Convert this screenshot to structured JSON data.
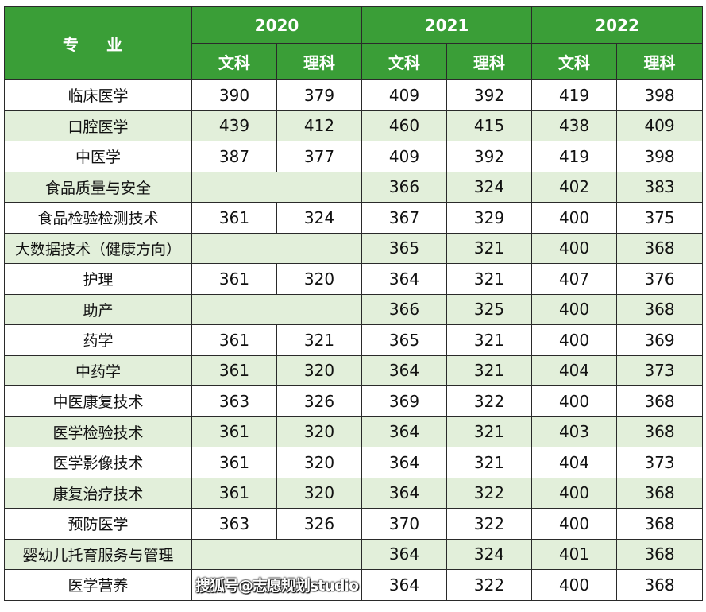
{
  "header": {
    "major_label": "专 业",
    "years": [
      "2020",
      "2021",
      "2022"
    ],
    "sub_columns": [
      "文科",
      "理科"
    ]
  },
  "colors": {
    "header_bg": "#3a9e37",
    "alt_row_bg": "#e2efda"
  },
  "rows": [
    {
      "name": "临床医学",
      "y2020": [
        "390",
        "379"
      ],
      "y2021": [
        "409",
        "392"
      ],
      "y2022": [
        "419",
        "398"
      ]
    },
    {
      "name": "口腔医学",
      "y2020": [
        "439",
        "412"
      ],
      "y2021": [
        "460",
        "415"
      ],
      "y2022": [
        "438",
        "409"
      ]
    },
    {
      "name": "中医学",
      "y2020": [
        "387",
        "377"
      ],
      "y2021": [
        "409",
        "392"
      ],
      "y2022": [
        "419",
        "398"
      ]
    },
    {
      "name": "食品质量与安全",
      "y2020": null,
      "y2021": [
        "366",
        "324"
      ],
      "y2022": [
        "402",
        "383"
      ]
    },
    {
      "name": "食品检验检测技术",
      "y2020": [
        "361",
        "324"
      ],
      "y2021": [
        "367",
        "329"
      ],
      "y2022": [
        "400",
        "375"
      ]
    },
    {
      "name": "大数据技术（健康方向）",
      "y2020": null,
      "y2021": [
        "365",
        "321"
      ],
      "y2022": [
        "400",
        "368"
      ]
    },
    {
      "name": "护理",
      "y2020": [
        "361",
        "320"
      ],
      "y2021": [
        "364",
        "321"
      ],
      "y2022": [
        "407",
        "376"
      ]
    },
    {
      "name": "助产",
      "y2020": null,
      "y2021": [
        "366",
        "325"
      ],
      "y2022": [
        "400",
        "368"
      ]
    },
    {
      "name": "药学",
      "y2020": [
        "361",
        "321"
      ],
      "y2021": [
        "365",
        "321"
      ],
      "y2022": [
        "400",
        "369"
      ]
    },
    {
      "name": "中药学",
      "y2020": [
        "361",
        "320"
      ],
      "y2021": [
        "364",
        "321"
      ],
      "y2022": [
        "404",
        "373"
      ]
    },
    {
      "name": "中医康复技术",
      "y2020": [
        "363",
        "326"
      ],
      "y2021": [
        "369",
        "322"
      ],
      "y2022": [
        "400",
        "368"
      ]
    },
    {
      "name": "医学检验技术",
      "y2020": [
        "361",
        "320"
      ],
      "y2021": [
        "364",
        "321"
      ],
      "y2022": [
        "403",
        "368"
      ]
    },
    {
      "name": "医学影像技术",
      "y2020": [
        "361",
        "320"
      ],
      "y2021": [
        "364",
        "321"
      ],
      "y2022": [
        "404",
        "373"
      ]
    },
    {
      "name": "康复治疗技术",
      "y2020": [
        "361",
        "320"
      ],
      "y2021": [
        "364",
        "322"
      ],
      "y2022": [
        "400",
        "368"
      ]
    },
    {
      "name": "预防医学",
      "y2020": [
        "363",
        "326"
      ],
      "y2021": [
        "370",
        "322"
      ],
      "y2022": [
        "400",
        "368"
      ]
    },
    {
      "name": "婴幼儿托育服务与管理",
      "y2020": null,
      "y2021": [
        "364",
        "324"
      ],
      "y2022": [
        "401",
        "368"
      ]
    },
    {
      "name": "医学营养",
      "y2020": null,
      "y2021": [
        "364",
        "322"
      ],
      "y2022": [
        "400",
        "368"
      ]
    }
  ],
  "watermark": "搜狐号@志愿规划studio"
}
